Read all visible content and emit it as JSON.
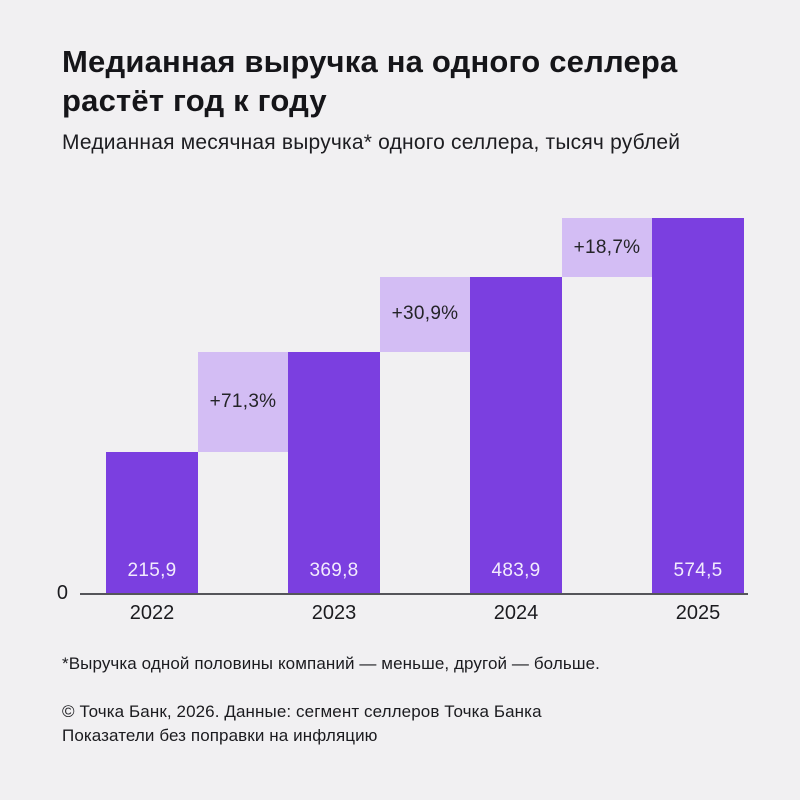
{
  "page": {
    "background": "#F1F0F2"
  },
  "header": {
    "title_line1": "Медианная выручка на одного селлера",
    "title_line2": "растёт год к году",
    "subtitle": "Медианная месячная выручка* одного селлера, тысяч рублей"
  },
  "chart_data": {
    "type": "bar",
    "title": "Медианная выручка на одного селлера растёт год к году",
    "subtitle": "Медианная месячная выручка* одного селлера, тысяч рублей",
    "units": "тысяч рублей",
    "categories": [
      "2022",
      "2023",
      "2024",
      "2025"
    ],
    "values": [
      215.9,
      369.8,
      483.9,
      574.5
    ],
    "value_labels": [
      "215,9",
      "369,8",
      "483,9",
      "574,5"
    ],
    "growth_labels": [
      "+71,3%",
      "+30,9%",
      "+18,7%"
    ],
    "y_axis_zero_label": "0",
    "ylim": [
      0,
      574.5
    ],
    "grid": false,
    "legend": false,
    "colors": {
      "background": "#F1F0F2",
      "bar": "#7B3FE0",
      "growth_box": "#D3BDF4",
      "axis_line": "#55555A",
      "value_text": "#F2EBFD",
      "label_text": "#1B1B1F"
    }
  },
  "footer": {
    "footnote": "*Выручка одной половины компаний — меньше, другой — больше.",
    "source_line1": "© Точка Банк, 2026. Данные: сегмент селлеров Точка Банка",
    "source_line2": "Показатели без поправки на инфляцию"
  }
}
